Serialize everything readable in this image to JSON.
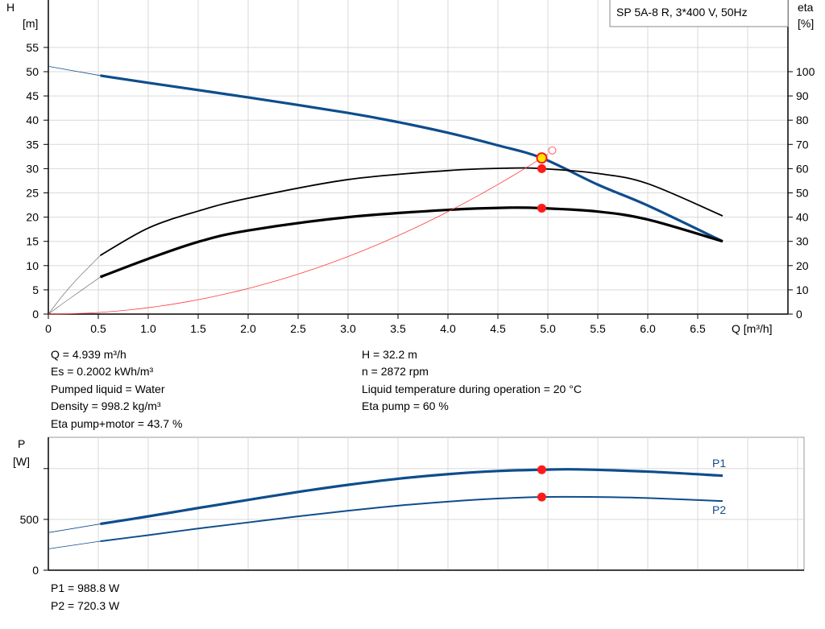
{
  "title_box": "SP 5A-8 R, 3*400 V, 50Hz",
  "colors": {
    "head": "#0e4d8c",
    "eta": "#000000",
    "system": "#ff3b3b",
    "power": "#0e4d8c",
    "duty_point": "#ff1a1a",
    "duty_fill": "#ffe600"
  },
  "info": {
    "left": [
      "Q = 4.939 m³/h",
      "Es = 0.2002 kWh/m³",
      "Pumped liquid = Water",
      "Density = 998.2 kg/m³",
      "Eta pump+motor = 43.7 %"
    ],
    "right": [
      "H = 32.2 m",
      "n = 2872 rpm",
      "Liquid temperature during operation = 20 °C",
      "Eta pump = 60 %"
    ]
  },
  "power_info": [
    "P1 = 988.8 W",
    "P2 = 720.3 W"
  ],
  "chart_data": [
    {
      "type": "line",
      "xlabel": "Q [m³/h]",
      "ylabel": [
        "H",
        "[m]"
      ],
      "y2label": [
        "eta",
        "[%]"
      ],
      "xlim": [
        0,
        7.4
      ],
      "ylim": [
        0,
        55
      ],
      "y2lim": [
        0,
        110
      ],
      "x_ticks": [
        "0",
        "0.5",
        "1.0",
        "1.5",
        "2.0",
        "2.5",
        "3.0",
        "3.5",
        "4.0",
        "4.5",
        "5.0",
        "5.5",
        "6.0",
        "6.5"
      ],
      "y_ticks": [
        "0",
        "5",
        "10",
        "15",
        "20",
        "25",
        "30",
        "35",
        "40",
        "45",
        "50",
        "55"
      ],
      "y2_ticks": [
        "0",
        "10",
        "20",
        "30",
        "40",
        "50",
        "60",
        "70",
        "80",
        "90",
        "100"
      ],
      "grid": true,
      "series": [
        {
          "key": "head",
          "axis": "H",
          "extension": [
            [
              0,
              51.1
            ],
            [
              0.52,
              49.2
            ]
          ],
          "points": [
            [
              0.52,
              49.2
            ],
            [
              1.0,
              47.7
            ],
            [
              2.0,
              44.7
            ],
            [
              3.0,
              41.5
            ],
            [
              3.5,
              39.6
            ],
            [
              4.0,
              37.4
            ],
            [
              4.5,
              34.8
            ],
            [
              4.939,
              32.2
            ],
            [
              5.5,
              26.7
            ],
            [
              6.0,
              22.4
            ],
            [
              6.75,
              15.0
            ]
          ]
        },
        {
          "key": "eta_pump",
          "axis": "eta",
          "extension": [
            [
              0,
              0
            ],
            [
              0.15,
              8
            ],
            [
              0.3,
              15
            ],
            [
              0.52,
              24.2
            ]
          ],
          "points": [
            [
              0.52,
              24.2
            ],
            [
              1.0,
              35.5
            ],
            [
              1.5,
              42.5
            ],
            [
              2.0,
              47.8
            ],
            [
              3.0,
              55.5
            ],
            [
              4.0,
              59.2
            ],
            [
              4.6,
              60.2
            ],
            [
              4.939,
              60
            ],
            [
              5.5,
              58
            ],
            [
              6.0,
              53.8
            ],
            [
              6.75,
              40.5
            ]
          ]
        },
        {
          "key": "eta_total",
          "axis": "eta",
          "extension": [
            [
              0,
              0
            ],
            [
              0.2,
              6
            ],
            [
              0.52,
              15.3
            ]
          ],
          "points": [
            [
              0.52,
              15.3
            ],
            [
              1.0,
              22.8
            ],
            [
              1.5,
              29.8
            ],
            [
              2.0,
              34.5
            ],
            [
              3.0,
              40
            ],
            [
              4.0,
              43
            ],
            [
              4.6,
              43.9
            ],
            [
              4.939,
              43.7
            ],
            [
              5.5,
              42.3
            ],
            [
              6.0,
              39
            ],
            [
              6.75,
              30
            ]
          ]
        },
        {
          "key": "system",
          "axis": "H",
          "quadratic_coef": 1.32,
          "range": [
            0,
            5.02
          ]
        }
      ],
      "duty_point": {
        "Q": 4.939,
        "H": 32.2,
        "eta_pump": 60,
        "eta_total": 43.7
      }
    },
    {
      "type": "line",
      "ylabel": [
        "P",
        "[W]"
      ],
      "xlim": [
        0,
        7.55
      ],
      "ylim": [
        0,
        1300
      ],
      "y_ticks": [
        "0",
        "500",
        ""
      ],
      "grid": true,
      "series": [
        {
          "key": "P1",
          "name": "P1",
          "extension": [
            [
              0,
              370
            ],
            [
              0.52,
              455
            ]
          ],
          "points": [
            [
              0.52,
              455
            ],
            [
              1.0,
              530
            ],
            [
              1.5,
              612
            ],
            [
              2.0,
              692
            ],
            [
              2.5,
              770
            ],
            [
              3.0,
              840
            ],
            [
              3.5,
              900
            ],
            [
              4.0,
              945
            ],
            [
              4.5,
              976
            ],
            [
              4.939,
              988.8
            ],
            [
              5.3,
              992
            ],
            [
              6.0,
              970
            ],
            [
              6.75,
              930
            ]
          ]
        },
        {
          "key": "P2",
          "name": "P2",
          "extension": [
            [
              0,
              210
            ],
            [
              0.52,
              285
            ]
          ],
          "points": [
            [
              0.52,
              285
            ],
            [
              1.0,
              345
            ],
            [
              1.5,
              410
            ],
            [
              2.0,
              470
            ],
            [
              2.5,
              530
            ],
            [
              3.0,
              585
            ],
            [
              3.5,
              635
            ],
            [
              4.0,
              675
            ],
            [
              4.5,
              705
            ],
            [
              4.939,
              720.3
            ],
            [
              5.5,
              720
            ],
            [
              6.0,
              710
            ],
            [
              6.75,
              680
            ]
          ]
        }
      ],
      "duty_point": {
        "Q": 4.939,
        "P1": 988.8,
        "P2": 720.3
      }
    }
  ]
}
